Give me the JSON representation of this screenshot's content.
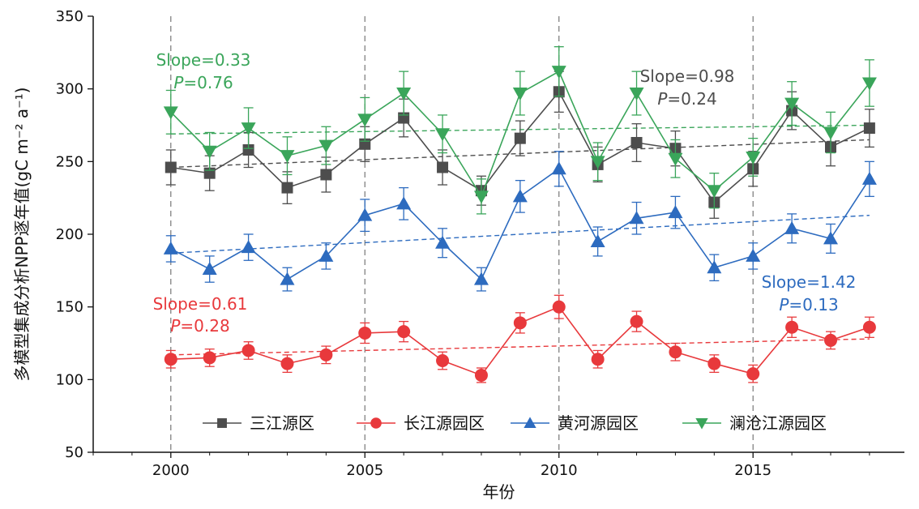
{
  "chart_data": {
    "type": "line",
    "xlabel": "年份",
    "ylabel": "多模型集成分析NPP逐年值(gC m⁻² a⁻¹)",
    "xlim": [
      1998.0,
      2018.9
    ],
    "ylim": [
      50,
      350
    ],
    "x_ticks": [
      2000,
      2005,
      2010,
      2015
    ],
    "y_ticks": [
      50,
      100,
      150,
      200,
      250,
      300,
      350
    ],
    "vertical_reference_lines": [
      2000,
      2005,
      2010,
      2015
    ],
    "grid": false,
    "legend_position": "bottom-center",
    "x": [
      2000,
      2001,
      2002,
      2003,
      2004,
      2005,
      2006,
      2007,
      2008,
      2009,
      2010,
      2011,
      2012,
      2013,
      2014,
      2015,
      2016,
      2017,
      2018
    ],
    "series": [
      {
        "name": "三江源区",
        "marker": "square",
        "color": "#4d4d4d",
        "values": [
          246,
          242,
          258,
          232,
          241,
          262,
          280,
          246,
          230,
          266,
          298,
          248,
          263,
          259,
          222,
          245,
          285,
          260,
          273
        ],
        "errors": [
          12,
          12,
          12,
          11,
          12,
          12,
          13,
          12,
          10,
          12,
          14,
          12,
          13,
          12,
          11,
          12,
          13,
          13,
          13
        ],
        "trend": [
          246,
          265
        ]
      },
      {
        "name": "长江源园区",
        "marker": "circle",
        "color": "#e8393c",
        "values": [
          114,
          115,
          120,
          111,
          117,
          132,
          133,
          113,
          103,
          139,
          150,
          114,
          140,
          119,
          111,
          104,
          136,
          127,
          136
        ],
        "errors": [
          6,
          6,
          6,
          6,
          6,
          7,
          7,
          6,
          5,
          7,
          8,
          6,
          7,
          6,
          6,
          6,
          7,
          6,
          7
        ],
        "trend": [
          117,
          128
        ]
      },
      {
        "name": "黄河源园区",
        "marker": "triangle-up",
        "color": "#2d6bbf",
        "values": [
          190,
          176,
          191,
          169,
          185,
          213,
          221,
          194,
          169,
          226,
          245,
          195,
          211,
          215,
          177,
          185,
          204,
          197,
          238
        ],
        "errors": [
          9,
          9,
          9,
          8,
          9,
          11,
          11,
          10,
          8,
          11,
          12,
          10,
          11,
          11,
          9,
          9,
          10,
          10,
          12
        ],
        "trend": [
          187,
          213
        ]
      },
      {
        "name": "澜沧江源园区",
        "marker": "triangle-down",
        "color": "#3aa55a",
        "values": [
          284,
          257,
          273,
          254,
          261,
          279,
          297,
          269,
          226,
          297,
          312,
          250,
          297,
          252,
          230,
          253,
          290,
          270,
          304
        ],
        "errors": [
          15,
          13,
          14,
          13,
          13,
          15,
          15,
          13,
          12,
          15,
          17,
          13,
          15,
          13,
          12,
          13,
          15,
          14,
          16
        ],
        "trend": [
          269,
          275
        ]
      }
    ],
    "annotations": [
      {
        "series": "澜沧江源园区",
        "slope": "Slope=0.33",
        "p_label": "P",
        "p_value": "=0.76",
        "color": "#3aa55a"
      },
      {
        "series": "三江源区",
        "slope": "Slope=0.98",
        "p_label": "P",
        "p_value": "=0.24",
        "color": "#4d4d4d"
      },
      {
        "series": "长江源园区",
        "slope": "Slope=0.61",
        "p_label": "P",
        "p_value": "=0.28",
        "color": "#e8393c"
      },
      {
        "series": "黄河源园区",
        "slope": "Slope=1.42",
        "p_label": "P",
        "p_value": "=0.13",
        "color": "#2d6bbf"
      }
    ]
  }
}
